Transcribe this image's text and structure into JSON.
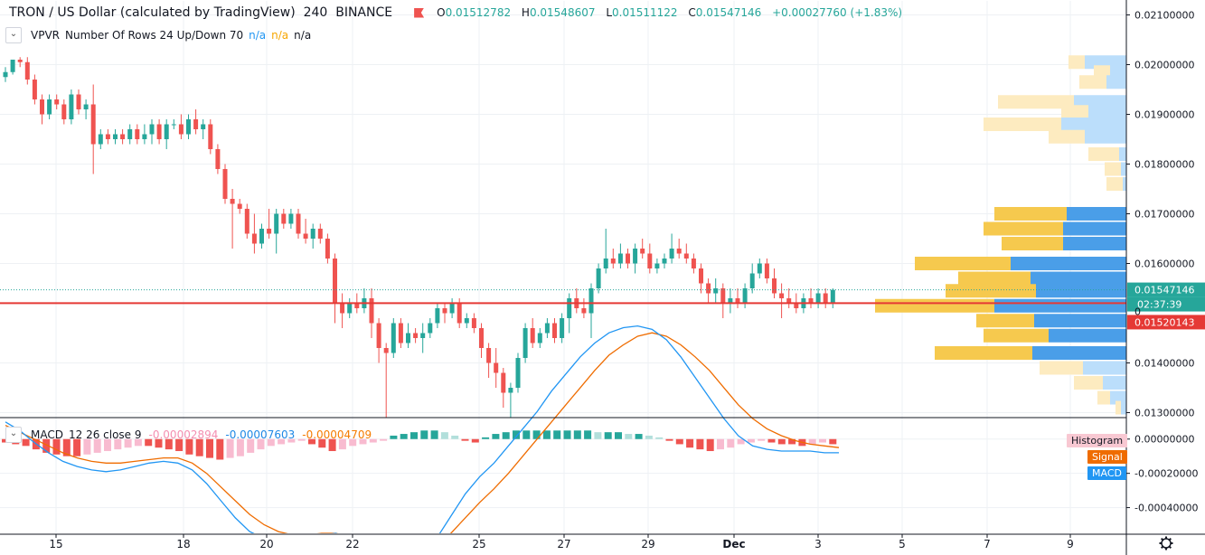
{
  "header": {
    "symbol": "TRON / US Dollar (calculated by TradingView)",
    "interval": "240",
    "exchange": "BINANCE",
    "open_label": "O",
    "open": "0.01512782",
    "high_label": "H",
    "high": "0.01548607",
    "low_label": "L",
    "low": "0.01511122",
    "close_label": "C",
    "close": "0.01547146",
    "change": "+0.00027760 (+1.83%)"
  },
  "vpvr": {
    "label": "VPVR",
    "params": "Number Of Rows 24 Up/Down 70",
    "na1": "n/a",
    "na2": "n/a",
    "na3": "n/a"
  },
  "macd_legend": {
    "label": "MACD",
    "params": "12 26 close 9",
    "histogram_value": "-0.00002894",
    "macd_value": "-0.00007603",
    "signal_value": "-0.00004709",
    "tag_histogram": "Histogram",
    "tag_signal": "Signal",
    "tag_macd": "MACD"
  },
  "price_axis": {
    "ticks": [
      "0.02100000",
      "0.02000000",
      "0.01900000",
      "0.01800000",
      "0.01700000",
      "0.01600000",
      "0.01400000",
      "0.01300000"
    ],
    "last_price": "0.01547146",
    "countdown": "02:37:39",
    "line_price": "0.01520143",
    "zero_mark": "0"
  },
  "macd_axis": {
    "ticks": [
      "0.00000000",
      "-0.00020000",
      "-0.00040000"
    ]
  },
  "time_axis": {
    "ticks": [
      "15",
      "18",
      "20",
      "22",
      "25",
      "27",
      "29",
      "Dec",
      "3",
      "5",
      "7",
      "9"
    ]
  },
  "colors": {
    "up": "#26a69a",
    "down": "#ef5350",
    "vol_up": "#4a9ee8",
    "vol_down": "#f6c94e",
    "vol_up_light": "#bbdefb",
    "vol_down_light": "#fdebc0",
    "macd_line": "#2196f3",
    "signal_line": "#ef6c00",
    "hline": "#e53935"
  },
  "chart_data": {
    "type": "candlestick",
    "interval": "240",
    "ylim": [
      0.0129,
      0.0213
    ],
    "xlabel": "",
    "ylabel": "",
    "candles": [
      [
        0.01975,
        0.01995,
        0.01965,
        0.01985
      ],
      [
        0.01985,
        0.0201,
        0.0198,
        0.0201
      ],
      [
        0.0201,
        0.02015,
        0.01995,
        0.02005
      ],
      [
        0.02005,
        0.02015,
        0.0196,
        0.0197
      ],
      [
        0.0197,
        0.0198,
        0.0192,
        0.0193
      ],
      [
        0.0193,
        0.0194,
        0.0188,
        0.019
      ],
      [
        0.019,
        0.0194,
        0.0189,
        0.0193
      ],
      [
        0.0193,
        0.0194,
        0.0191,
        0.0192
      ],
      [
        0.0192,
        0.0193,
        0.0188,
        0.0189
      ],
      [
        0.0189,
        0.0195,
        0.0188,
        0.0194
      ],
      [
        0.0194,
        0.0195,
        0.019,
        0.0191
      ],
      [
        0.0191,
        0.0193,
        0.0189,
        0.0192
      ],
      [
        0.0192,
        0.0196,
        0.0178,
        0.0184
      ],
      [
        0.0184,
        0.0187,
        0.0183,
        0.0186
      ],
      [
        0.0186,
        0.0187,
        0.0184,
        0.0185
      ],
      [
        0.0185,
        0.0187,
        0.0184,
        0.0186
      ],
      [
        0.0186,
        0.0187,
        0.0184,
        0.0185
      ],
      [
        0.0185,
        0.0188,
        0.0184,
        0.0187
      ],
      [
        0.0187,
        0.0188,
        0.0184,
        0.0185
      ],
      [
        0.0185,
        0.0188,
        0.0184,
        0.0186
      ],
      [
        0.0186,
        0.0189,
        0.0184,
        0.0188
      ],
      [
        0.0188,
        0.0189,
        0.0184,
        0.0185
      ],
      [
        0.0185,
        0.0189,
        0.0183,
        0.0188
      ],
      [
        0.0188,
        0.0189,
        0.0187,
        0.0188
      ],
      [
        0.0188,
        0.019,
        0.0185,
        0.0186
      ],
      [
        0.0186,
        0.019,
        0.0185,
        0.0189
      ],
      [
        0.0189,
        0.0191,
        0.0186,
        0.0187
      ],
      [
        0.0187,
        0.0189,
        0.0185,
        0.0188
      ],
      [
        0.0188,
        0.0189,
        0.0182,
        0.0183
      ],
      [
        0.0183,
        0.0184,
        0.0178,
        0.0179
      ],
      [
        0.0179,
        0.018,
        0.0172,
        0.0173
      ],
      [
        0.0173,
        0.0175,
        0.0163,
        0.0172
      ],
      [
        0.0172,
        0.0173,
        0.017,
        0.0171
      ],
      [
        0.0171,
        0.0172,
        0.0165,
        0.0166
      ],
      [
        0.0166,
        0.017,
        0.0162,
        0.0164
      ],
      [
        0.0164,
        0.0168,
        0.0163,
        0.0167
      ],
      [
        0.0167,
        0.0171,
        0.0165,
        0.0166
      ],
      [
        0.0166,
        0.0171,
        0.0162,
        0.017
      ],
      [
        0.017,
        0.0171,
        0.0167,
        0.0168
      ],
      [
        0.0168,
        0.0171,
        0.0167,
        0.017
      ],
      [
        0.017,
        0.0171,
        0.0165,
        0.0166
      ],
      [
        0.0166,
        0.0169,
        0.0164,
        0.0165
      ],
      [
        0.0165,
        0.0168,
        0.0163,
        0.0167
      ],
      [
        0.0167,
        0.0168,
        0.0164,
        0.0165
      ],
      [
        0.0165,
        0.0166,
        0.016,
        0.0161
      ],
      [
        0.0161,
        0.0162,
        0.0148,
        0.0152
      ],
      [
        0.0152,
        0.0154,
        0.0147,
        0.015
      ],
      [
        0.015,
        0.0153,
        0.0149,
        0.0152
      ],
      [
        0.0152,
        0.0154,
        0.015,
        0.0151
      ],
      [
        0.0151,
        0.0155,
        0.015,
        0.0153
      ],
      [
        0.0153,
        0.0155,
        0.0145,
        0.0148
      ],
      [
        0.0148,
        0.0149,
        0.014,
        0.0143
      ],
      [
        0.0143,
        0.0144,
        0.0129,
        0.0142
      ],
      [
        0.0142,
        0.0149,
        0.0141,
        0.0148
      ],
      [
        0.0148,
        0.0149,
        0.0143,
        0.0144
      ],
      [
        0.0144,
        0.0148,
        0.0143,
        0.0146
      ],
      [
        0.0146,
        0.0147,
        0.0144,
        0.0145
      ],
      [
        0.0145,
        0.0148,
        0.0142,
        0.0146
      ],
      [
        0.0146,
        0.0149,
        0.0145,
        0.0148
      ],
      [
        0.0148,
        0.0152,
        0.0147,
        0.0151
      ],
      [
        0.0151,
        0.0152,
        0.0148,
        0.015
      ],
      [
        0.015,
        0.0153,
        0.0149,
        0.0152
      ],
      [
        0.0152,
        0.0153,
        0.0147,
        0.0148
      ],
      [
        0.0148,
        0.015,
        0.0147,
        0.0149
      ],
      [
        0.0149,
        0.015,
        0.0146,
        0.0147
      ],
      [
        0.0147,
        0.0148,
        0.0141,
        0.0143
      ],
      [
        0.0143,
        0.0144,
        0.0137,
        0.014
      ],
      [
        0.014,
        0.0143,
        0.0135,
        0.0138
      ],
      [
        0.0138,
        0.0139,
        0.0131,
        0.0134
      ],
      [
        0.0134,
        0.0136,
        0.0129,
        0.0135
      ],
      [
        0.0135,
        0.0142,
        0.0134,
        0.0141
      ],
      [
        0.0141,
        0.0148,
        0.014,
        0.0147
      ],
      [
        0.0147,
        0.0149,
        0.0143,
        0.0144
      ],
      [
        0.0144,
        0.0147,
        0.0143,
        0.0146
      ],
      [
        0.0146,
        0.0149,
        0.0145,
        0.0148
      ],
      [
        0.0148,
        0.0149,
        0.0144,
        0.0145
      ],
      [
        0.0145,
        0.015,
        0.0144,
        0.0149
      ],
      [
        0.0149,
        0.0154,
        0.0146,
        0.0153
      ],
      [
        0.0153,
        0.0155,
        0.015,
        0.0151
      ],
      [
        0.0151,
        0.0153,
        0.0149,
        0.015
      ],
      [
        0.015,
        0.0156,
        0.0145,
        0.0155
      ],
      [
        0.0155,
        0.016,
        0.0154,
        0.0159
      ],
      [
        0.0159,
        0.0167,
        0.0158,
        0.0161
      ],
      [
        0.0161,
        0.0163,
        0.0159,
        0.016
      ],
      [
        0.016,
        0.0164,
        0.0159,
        0.0162
      ],
      [
        0.0162,
        0.0163,
        0.0159,
        0.016
      ],
      [
        0.016,
        0.0164,
        0.0158,
        0.0163
      ],
      [
        0.0163,
        0.0165,
        0.0161,
        0.0162
      ],
      [
        0.0162,
        0.0164,
        0.0158,
        0.0159
      ],
      [
        0.0159,
        0.0161,
        0.0158,
        0.016
      ],
      [
        0.016,
        0.0162,
        0.0159,
        0.0161
      ],
      [
        0.0161,
        0.0166,
        0.016,
        0.0163
      ],
      [
        0.0163,
        0.0165,
        0.0161,
        0.0162
      ],
      [
        0.0162,
        0.0164,
        0.016,
        0.0161
      ],
      [
        0.0161,
        0.0162,
        0.0158,
        0.0159
      ],
      [
        0.0159,
        0.016,
        0.0154,
        0.0156
      ],
      [
        0.0156,
        0.0157,
        0.0152,
        0.0154
      ],
      [
        0.0154,
        0.0157,
        0.0152,
        0.0155
      ],
      [
        0.0155,
        0.0156,
        0.0149,
        0.0152
      ],
      [
        0.0152,
        0.0155,
        0.015,
        0.0153
      ],
      [
        0.0153,
        0.0155,
        0.0151,
        0.0152
      ],
      [
        0.0152,
        0.0156,
        0.0151,
        0.0155
      ],
      [
        0.0155,
        0.016,
        0.0154,
        0.0158
      ],
      [
        0.0158,
        0.0161,
        0.0157,
        0.016
      ],
      [
        0.016,
        0.0161,
        0.0156,
        0.0157
      ],
      [
        0.0157,
        0.0159,
        0.0153,
        0.0154
      ],
      [
        0.0154,
        0.0156,
        0.0149,
        0.0153
      ],
      [
        0.0153,
        0.0155,
        0.0151,
        0.0152
      ],
      [
        0.0152,
        0.0154,
        0.015,
        0.0151
      ],
      [
        0.0151,
        0.0154,
        0.015,
        0.0153
      ],
      [
        0.0153,
        0.0155,
        0.0151,
        0.0152
      ],
      [
        0.0152,
        0.0155,
        0.0151,
        0.0154
      ],
      [
        0.0154,
        0.0155,
        0.0151,
        0.0152
      ],
      [
        0.0152,
        0.0155,
        0.0151,
        0.01547
      ]
    ],
    "volume_profile": {
      "rows": [
        {
          "price": 0.02015,
          "up": 0.0,
          "down": 0.0,
          "light": true
        },
        {
          "price": 0.0201,
          "up": 0.0
        }
      ]
    },
    "horizontal_line": 0.01520143,
    "last_price": 0.01547146,
    "macd": {
      "ylim": [
        -0.00055,
        0.00012
      ],
      "histogram": [
        -2e-05,
        -3e-05,
        -4e-05,
        -6e-05,
        -8e-05,
        -9e-05,
        -0.0001,
        -0.0001,
        -9e-05,
        -8e-05,
        -7e-05,
        -6e-05,
        -5e-05,
        -4e-05,
        -4e-05,
        -5e-05,
        -6e-05,
        -7e-05,
        -9e-05,
        -0.0001,
        -0.00011,
        -0.00012,
        -0.00011,
        -0.0001,
        -8e-05,
        -6e-05,
        -4e-05,
        -3e-05,
        -2e-05,
        -1e-05,
        -3e-05,
        -5e-05,
        -7e-05,
        -6e-05,
        -4e-05,
        -3e-05,
        -2e-05,
        -1e-05,
        2e-05,
        3e-05,
        4e-05,
        5e-05,
        5e-05,
        4e-05,
        2e-05,
        -1e-05,
        -2e-05,
        1e-05,
        3e-05,
        4e-05,
        5e-05,
        5e-05,
        5e-05,
        5e-05,
        5e-05,
        5e-05,
        5e-05,
        5e-05,
        4e-05,
        4e-05,
        4e-05,
        3e-05,
        3e-05,
        2e-05,
        1e-05,
        -1e-05,
        -3e-05,
        -5e-05,
        -6e-05,
        -7e-05,
        -6e-05,
        -5e-05,
        -3e-05,
        -2e-05,
        -1e-05,
        -2e-05,
        -3e-05,
        -3e-05,
        -4e-05,
        -3e-05,
        -2e-05,
        -3e-05
      ],
      "macd_line": [
        0.0001,
        5e-05,
        -2e-05,
        -8e-05,
        -0.00013,
        -0.00016,
        -0.00018,
        -0.00019,
        -0.00018,
        -0.00016,
        -0.00014,
        -0.00013,
        -0.00014,
        -0.00018,
        -0.00026,
        -0.00036,
        -0.00046,
        -0.00054,
        -0.00058,
        -0.00059,
        -0.00058,
        -0.00057,
        -0.00056,
        -0.00055,
        -0.00058,
        -0.00062,
        -0.00066,
        -0.00068,
        -0.00069,
        -0.00066,
        -0.00058,
        -0.00045,
        -0.00032,
        -0.00022,
        -0.00014,
        -4e-05,
        6e-05,
        0.00016,
        0.00028,
        0.00038,
        0.00048,
        0.00056,
        0.00062,
        0.00065,
        0.00066,
        0.00064,
        0.00058,
        0.00048,
        0.00036,
        0.00024,
        0.00012,
        2e-05,
        -4e-05,
        -6e-05,
        -7e-05,
        -7e-05,
        -7e-05,
        -8e-05,
        -8e-05
      ],
      "signal_line": [
        8e-05,
        4e-05,
        0.0,
        -4e-05,
        -8e-05,
        -0.00011,
        -0.00013,
        -0.00014,
        -0.00014,
        -0.00013,
        -0.00012,
        -0.00011,
        -0.00011,
        -0.00014,
        -0.0002,
        -0.00028,
        -0.00036,
        -0.00044,
        -0.0005,
        -0.00054,
        -0.00056,
        -0.00056,
        -0.00055,
        -0.00055,
        -0.00057,
        -0.0006,
        -0.00064,
        -0.00066,
        -0.00067,
        -0.00066,
        -0.00062,
        -0.00055,
        -0.00046,
        -0.00037,
        -0.00029,
        -0.0002,
        -0.0001,
        0.0,
        0.0001,
        0.0002,
        0.0003,
        0.0004,
        0.00049,
        0.00055,
        0.0006,
        0.00062,
        0.0006,
        0.00055,
        0.00048,
        0.0004,
        0.0003,
        0.0002,
        0.00012,
        6e-05,
        2e-05,
        -1e-05,
        -3e-05,
        -4e-05,
        -5e-05
      ]
    }
  }
}
